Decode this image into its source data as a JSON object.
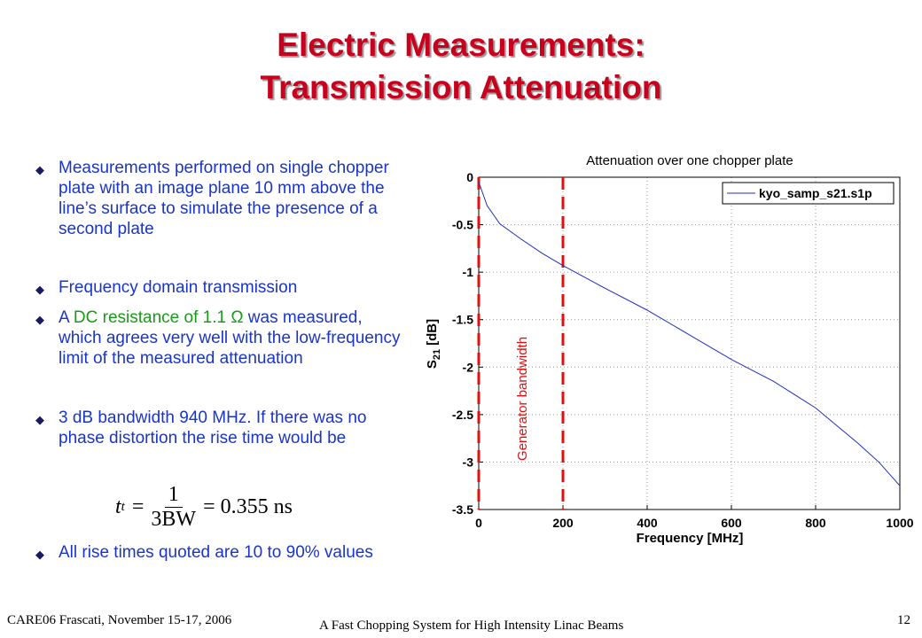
{
  "slide": {
    "title_lines": [
      "Electric Measurements:",
      "Transmission Attenuation"
    ],
    "bullets": [
      {
        "segments": [
          {
            "text": "Measurements performed on single chopper plate with an image plane 10 mm above the line’s surface to simulate the presence of a second plate"
          }
        ]
      },
      {
        "segments": [
          {
            "text": "Frequency domain transmission"
          }
        ]
      },
      {
        "segments": [
          {
            "text": "A "
          },
          {
            "text": "DC resistance of 1.1 Ω",
            "color": "#1a9a1a"
          },
          {
            "text": " was measured, which agrees very well with the low-frequency limit of the measured attenuation"
          }
        ]
      },
      {
        "segments": [
          {
            "text": "3 dB bandwidth 940 MHz. If there was no phase distortion the rise time would be"
          }
        ]
      },
      {
        "segments": [
          {
            "text": "All rise times quoted are 10 to 90% values"
          }
        ]
      }
    ],
    "equation": {
      "lhs": "t",
      "lhs_sub": "t",
      "equals": "=",
      "numerator": "1",
      "denominator": "3BW",
      "result": "= 0.355 ns"
    },
    "footer": {
      "left": "CARE06 Frascati, November 15-17, 2006",
      "center": "A Fast Chopping System for High Intensity Linac Beams",
      "right": "12"
    }
  },
  "chart_data": {
    "type": "line",
    "title": "Attenuation over one chopper plate",
    "xlabel": "Frequency [MHz]",
    "ylabel": {
      "symbol": "S",
      "subscript": "21",
      "unit": "[dB]"
    },
    "x": [
      0,
      20,
      50,
      100,
      150,
      200,
      300,
      400,
      500,
      600,
      700,
      800,
      900,
      950,
      1000
    ],
    "series": [
      {
        "name": "kyo_samp_s21.s1p",
        "color": "#1f2fbf",
        "values": [
          -0.05,
          -0.3,
          -0.49,
          -0.65,
          -0.8,
          -0.93,
          -1.17,
          -1.4,
          -1.66,
          -1.92,
          -2.15,
          -2.43,
          -2.8,
          -3.0,
          -3.25
        ]
      }
    ],
    "xlim": [
      0,
      1000
    ],
    "ylim": [
      -3.5,
      0
    ],
    "xticks": [
      0,
      200,
      400,
      600,
      800,
      1000
    ],
    "yticks": [
      0,
      -0.5,
      -1,
      -1.5,
      -2,
      -2.5,
      -3,
      -3.5
    ],
    "grid": true,
    "legend": "upper right",
    "annotation": {
      "text": "Generator bandwidth",
      "x": [
        0,
        200
      ],
      "color": "#e01010"
    }
  }
}
